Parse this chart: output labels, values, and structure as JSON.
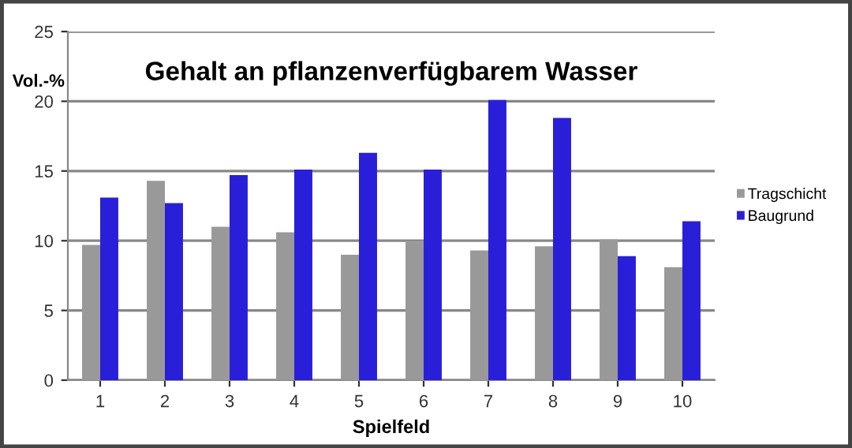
{
  "chart_data": {
    "type": "bar",
    "title": "Gehalt an pflanzenverfügbarem Wasser",
    "xlabel": "Spielfeld",
    "ylabel": "Vol.-%",
    "categories": [
      "1",
      "2",
      "3",
      "4",
      "5",
      "6",
      "7",
      "8",
      "9",
      "10"
    ],
    "series": [
      {
        "name": "Tragschicht",
        "color": "#999999",
        "values": [
          9.7,
          14.3,
          11.0,
          10.6,
          9.0,
          9.9,
          9.3,
          9.6,
          10.1,
          8.1
        ]
      },
      {
        "name": "Baugrund",
        "color": "#2a1fd9",
        "values": [
          13.1,
          12.7,
          14.7,
          15.1,
          16.3,
          15.1,
          20.1,
          18.8,
          8.9,
          11.4
        ]
      }
    ],
    "ylim": [
      0,
      25
    ],
    "yticks": [
      0,
      5,
      10,
      15,
      20,
      25
    ],
    "grid": "y",
    "legend": "right"
  }
}
